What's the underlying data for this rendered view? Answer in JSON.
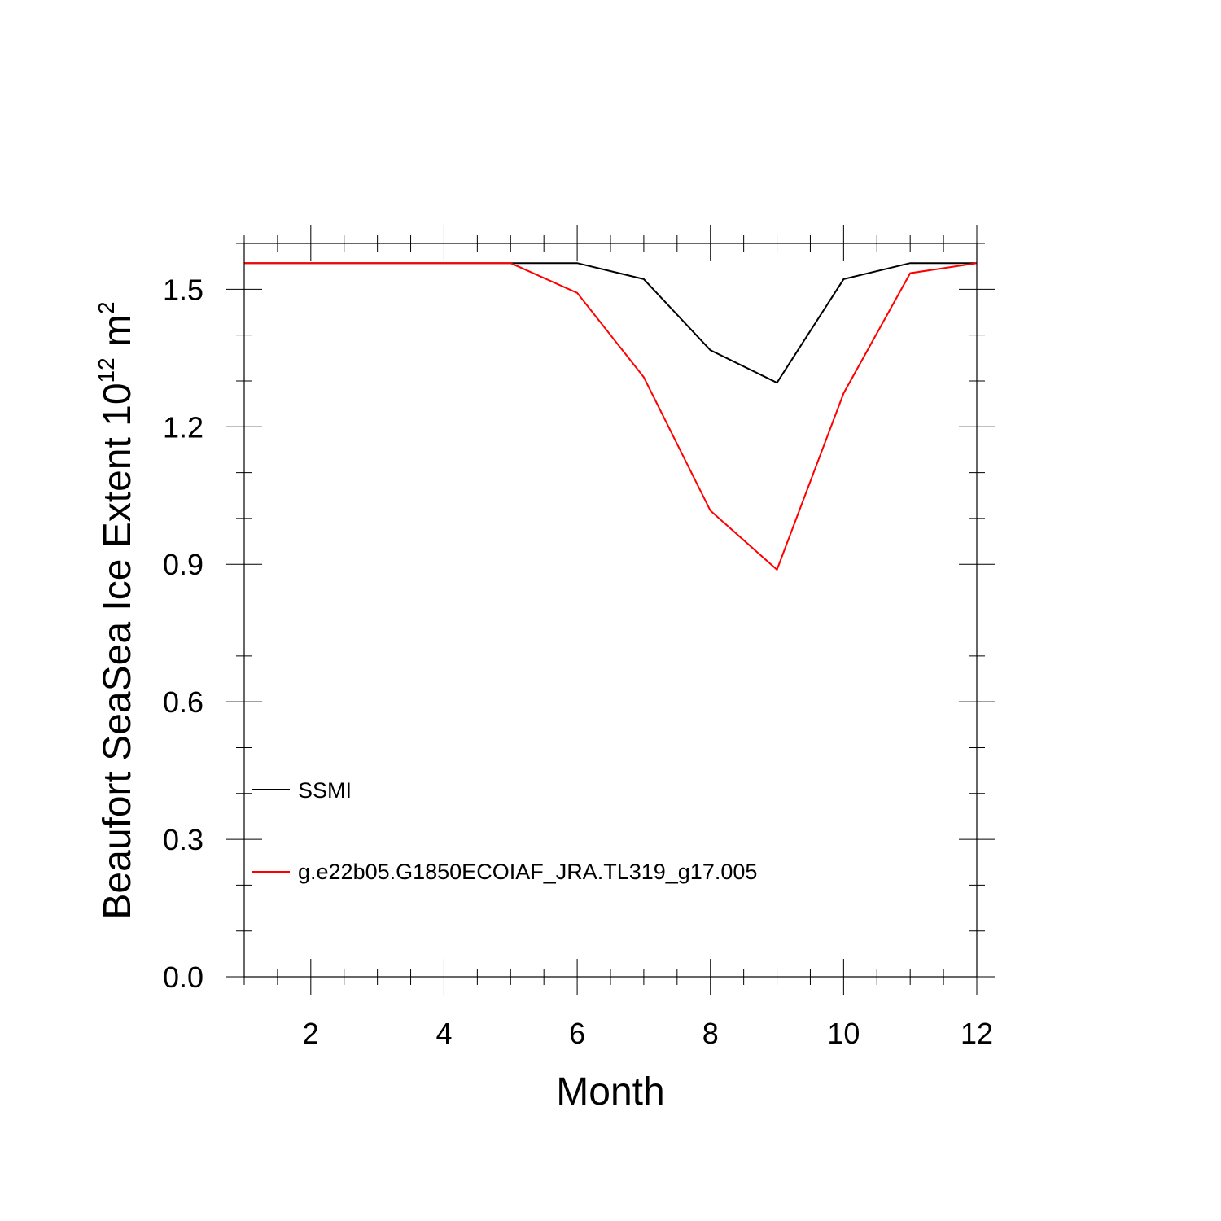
{
  "chart_data": {
    "type": "line",
    "xlabel": "Month",
    "ylabel": {
      "main": "Beaufort SeaSea Ice Extent 10",
      "exponent": "12",
      "unit": " m",
      "unit_exponent": "2"
    },
    "xlim": [
      1,
      12
    ],
    "ylim": [
      0,
      1.6
    ],
    "x_major_ticks": [
      2,
      4,
      6,
      8,
      10,
      12
    ],
    "x_tick_labels": [
      "2",
      "4",
      "6",
      "8",
      "10",
      "12"
    ],
    "y_major_ticks": [
      0,
      0.3,
      0.6,
      0.9,
      1.2,
      1.5
    ],
    "y_tick_labels": [
      "0.0",
      "0.3",
      "0.6",
      "0.9",
      "1.2",
      "1.5"
    ],
    "x": [
      1,
      2,
      3,
      4,
      5,
      6,
      7,
      8,
      9,
      10,
      11,
      12
    ],
    "series": [
      {
        "name": "SSMI",
        "color": "#000000",
        "values": [
          1.557,
          1.557,
          1.557,
          1.557,
          1.557,
          1.557,
          1.522,
          1.367,
          1.296,
          1.522,
          1.557,
          1.557
        ]
      },
      {
        "name": "g.e22b05.G1850ECOIAF_JRA.TL319_g17.005",
        "color": "#ff0000",
        "values": [
          1.557,
          1.557,
          1.557,
          1.557,
          1.557,
          1.492,
          1.308,
          1.017,
          0.888,
          1.273,
          1.535,
          1.557
        ]
      }
    ],
    "legend_position": "lower-left",
    "grid": false
  }
}
